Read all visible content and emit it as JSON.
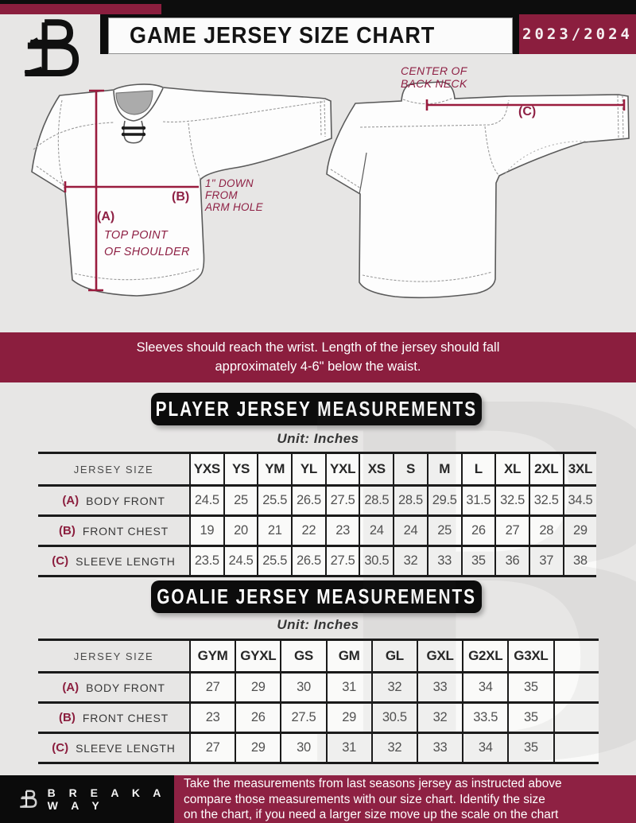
{
  "branding": {
    "logo_letter": "B",
    "brand_name": "B R E A K A W A Y",
    "watermark_letter": "B"
  },
  "header": {
    "title": "GAME JERSEY SIZE CHART",
    "season": "2023/2024"
  },
  "diagram": {
    "front": {
      "a_label": "(A)",
      "a_caption_line1": "TOP POINT",
      "a_caption_line2": "OF SHOULDER",
      "b_label": "(B)",
      "b_caption_line1": "1\" DOWN",
      "b_caption_line2": "FROM",
      "b_caption_line3": "ARM HOLE"
    },
    "back": {
      "c_label": "(C)",
      "c_caption_line1": "CENTER OF",
      "c_caption_line2": "BACK NECK"
    }
  },
  "notice": {
    "line1": "Sleeves should reach the wrist. Length of the jersey should fall",
    "line2": "approximately 4-6\" below the waist."
  },
  "player_table": {
    "section_title": "PLAYER JERSEY MEASUREMENTS",
    "unit_label": "Unit: Inches",
    "corner_header": "JERSEY SIZE",
    "sizes": [
      "YXS",
      "YS",
      "YM",
      "YL",
      "YXL",
      "XS",
      "S",
      "M",
      "L",
      "XL",
      "2XL",
      "3XL"
    ],
    "rows": [
      {
        "key": "(A)",
        "label": "BODY FRONT",
        "values": [
          "24.5",
          "25",
          "25.5",
          "26.5",
          "27.5",
          "28.5",
          "28.5",
          "29.5",
          "31.5",
          "32.5",
          "32.5",
          "34.5"
        ]
      },
      {
        "key": "(B)",
        "label": "FRONT CHEST",
        "values": [
          "19",
          "20",
          "21",
          "22",
          "23",
          "24",
          "24",
          "25",
          "26",
          "27",
          "28",
          "29"
        ]
      },
      {
        "key": "(C)",
        "label": "SLEEVE LENGTH",
        "values": [
          "23.5",
          "24.5",
          "25.5",
          "26.5",
          "27.5",
          "30.5",
          "32",
          "33",
          "35",
          "36",
          "37",
          "38"
        ]
      }
    ]
  },
  "goalie_table": {
    "section_title": "GOALIE JERSEY MEASUREMENTS",
    "unit_label": "Unit: Inches",
    "corner_header": "JERSEY SIZE",
    "sizes": [
      "GYM",
      "GYXL",
      "GS",
      "GM",
      "GL",
      "GXL",
      "G2XL",
      "G3XL",
      ""
    ],
    "rows": [
      {
        "key": "(A)",
        "label": "BODY FRONT",
        "values": [
          "27",
          "29",
          "30",
          "31",
          "32",
          "33",
          "34",
          "35",
          ""
        ]
      },
      {
        "key": "(B)",
        "label": "FRONT CHEST",
        "values": [
          "23",
          "26",
          "27.5",
          "29",
          "30.5",
          "32",
          "33.5",
          "35",
          ""
        ]
      },
      {
        "key": "(C)",
        "label": "SLEEVE LENGTH",
        "values": [
          "27",
          "29",
          "30",
          "31",
          "32",
          "33",
          "34",
          "35",
          ""
        ]
      }
    ]
  },
  "footer": {
    "line1": "Take the measurements from last seasons jersey as instructed above",
    "line2": "compare those measurements  with our size chart. Identify the size",
    "line3": "on the chart, if you need a larger size move up the scale on the chart"
  },
  "colors": {
    "maroon": "#8B1E3E",
    "black": "#0D0D0D",
    "page_bg": "#E7E6E5",
    "measure_line": "#9A1C3E",
    "table_line": "#1A1A1A"
  }
}
